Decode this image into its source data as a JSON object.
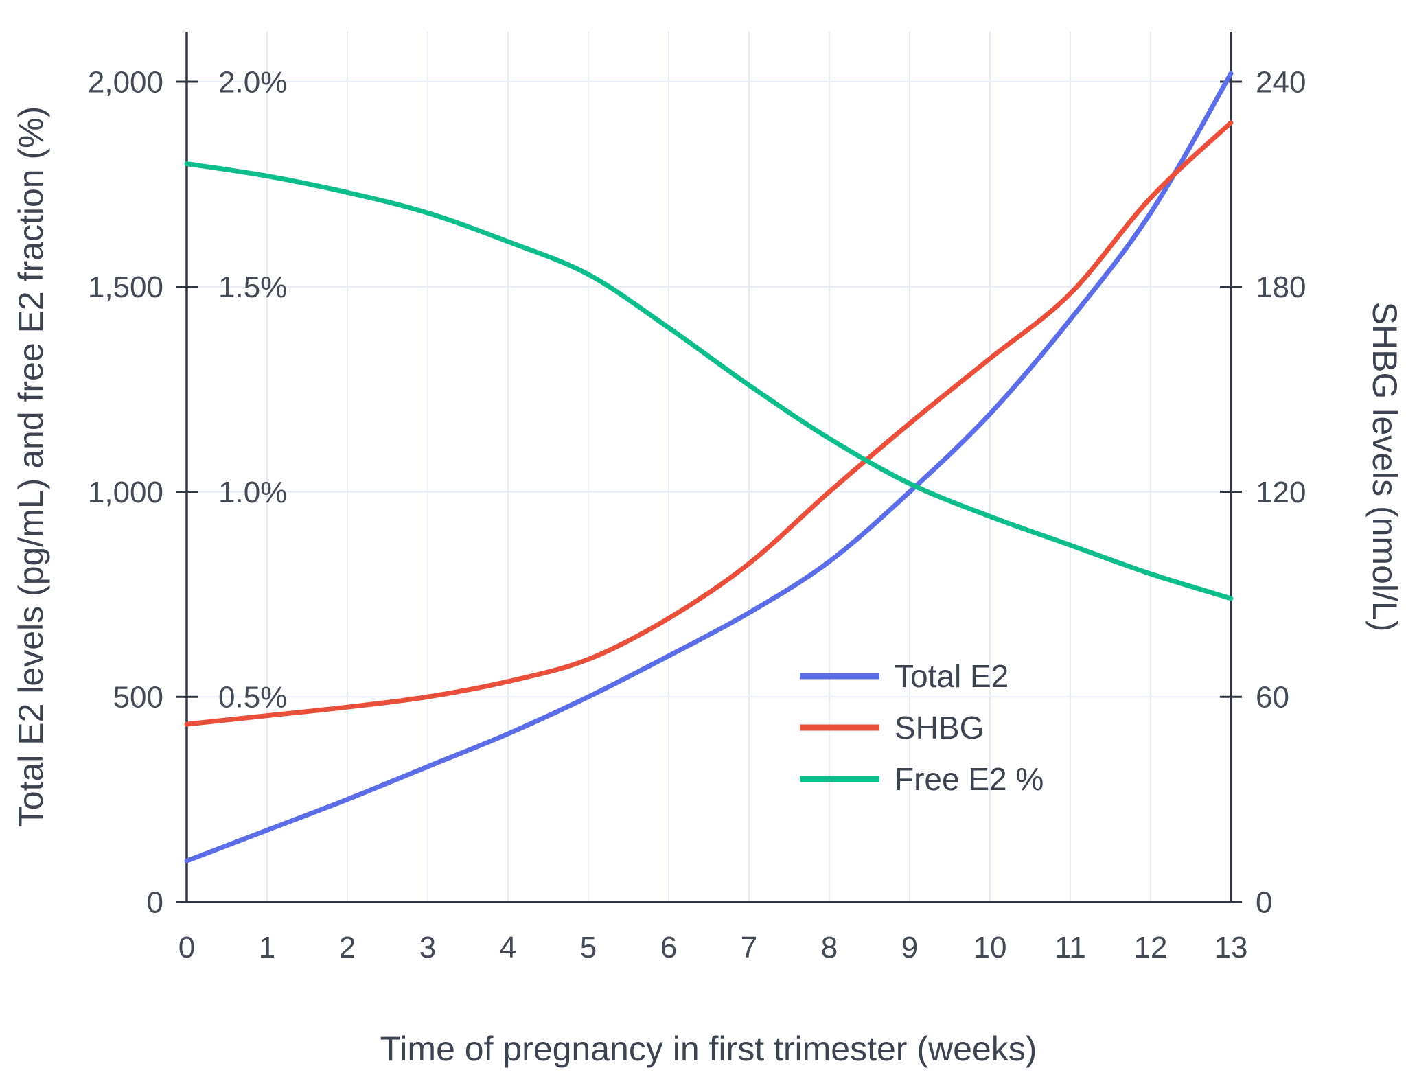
{
  "colors": {
    "background": "#ffffff",
    "grid": "#e7ecf6",
    "axis_line": "#2f3542",
    "tick_text": "#444a55",
    "title_text": "#3d4350",
    "total_e2": "#5b6ee8",
    "shbg": "#e94f3b",
    "free_e2": "#0dbd8b"
  },
  "chart_data": {
    "type": "line",
    "title": "",
    "xlabel": "Time of pregnancy in first trimester (weeks)",
    "ylabel_left": "Total E2 levels (pg/mL) and free E2 fraction (%)",
    "ylabel_right": "SHBG levels (nmol/L)",
    "x": [
      0,
      1,
      2,
      3,
      4,
      5,
      6,
      7,
      8,
      9,
      10,
      11,
      12,
      13
    ],
    "xlim": [
      0,
      13
    ],
    "x_tick_labels": [
      "0",
      "1",
      "2",
      "3",
      "4",
      "5",
      "6",
      "7",
      "8",
      "9",
      "10",
      "11",
      "12",
      "13"
    ],
    "grid": true,
    "axes": {
      "left": {
        "max": 2000,
        "ticks": [
          0,
          500,
          1000,
          1500,
          2000
        ],
        "labels": [
          "0",
          "500",
          "1,000",
          "1,500",
          "2,000"
        ]
      },
      "percent": {
        "max": 2.0,
        "ticks": [
          0.5,
          1.0,
          1.5,
          2.0
        ],
        "labels": [
          "0.5%",
          "1.0%",
          "1.5%",
          "2.0%"
        ]
      },
      "right": {
        "max": 240,
        "ticks": [
          0,
          60,
          120,
          180,
          240
        ],
        "labels": [
          "0",
          "60",
          "120",
          "180",
          "240"
        ]
      }
    },
    "series": [
      {
        "name": "Total E2",
        "slug": "total-e2",
        "axis": "left",
        "unit": "pg/mL",
        "color": "#5b6ee8",
        "values": [
          100,
          175,
          250,
          330,
          410,
          500,
          600,
          705,
          830,
          1000,
          1190,
          1420,
          1680,
          2020
        ]
      },
      {
        "name": "SHBG",
        "slug": "shbg",
        "axis": "right",
        "unit": "nmol/L",
        "color": "#e94f3b",
        "values": [
          52,
          54.5,
          57,
          60,
          64.5,
          71,
          83,
          99,
          120,
          140,
          159,
          178,
          206,
          228
        ]
      },
      {
        "name": "Free E2 %",
        "slug": "free-e2",
        "axis": "percent",
        "unit": "%",
        "color": "#0dbd8b",
        "values": [
          1.8,
          1.77,
          1.73,
          1.68,
          1.61,
          1.53,
          1.4,
          1.26,
          1.13,
          1.02,
          0.94,
          0.87,
          0.8,
          0.74
        ]
      }
    ],
    "legend": {
      "position": "middle-right",
      "items": [
        "Total E2",
        "SHBG",
        "Free E2 %"
      ]
    }
  }
}
